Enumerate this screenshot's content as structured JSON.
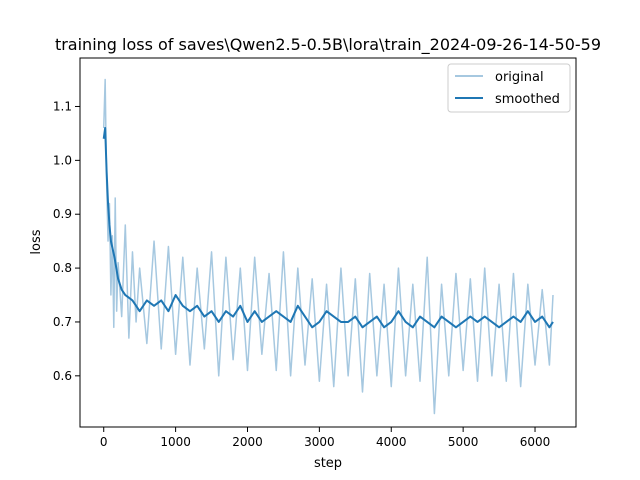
{
  "chart_data": {
    "type": "line",
    "title": "training loss of saves\\Qwen2.5-0.5B\\lora\\train_2024-09-26-14-50-59",
    "xlabel": "step",
    "ylabel": "loss",
    "xlim": [
      -330,
      6570
    ],
    "ylim": [
      0.505,
      1.19
    ],
    "xticks": [
      0,
      1000,
      2000,
      3000,
      4000,
      5000,
      6000
    ],
    "yticks": [
      0.6,
      0.7,
      0.8,
      0.9,
      1.0,
      1.1
    ],
    "grid": false,
    "legend": {
      "placement": "top-right"
    },
    "series": [
      {
        "name": "original",
        "color": "#a6c8e0",
        "x": [
          0,
          20,
          40,
          60,
          80,
          100,
          120,
          140,
          160,
          180,
          200,
          250,
          300,
          350,
          400,
          450,
          500,
          600,
          700,
          800,
          900,
          1000,
          1100,
          1200,
          1300,
          1400,
          1500,
          1600,
          1700,
          1800,
          1900,
          2000,
          2100,
          2200,
          2300,
          2400,
          2500,
          2600,
          2700,
          2800,
          2900,
          3000,
          3100,
          3200,
          3300,
          3400,
          3500,
          3600,
          3700,
          3800,
          3900,
          4000,
          4100,
          4200,
          4300,
          4400,
          4500,
          4600,
          4700,
          4800,
          4900,
          5000,
          5100,
          5200,
          5300,
          5400,
          5500,
          5600,
          5700,
          5800,
          5900,
          6000,
          6100,
          6200,
          6250
        ],
        "y": [
          1.06,
          1.15,
          0.96,
          0.85,
          0.92,
          0.75,
          0.86,
          0.69,
          0.93,
          0.72,
          0.81,
          0.71,
          0.88,
          0.67,
          0.83,
          0.7,
          0.8,
          0.66,
          0.85,
          0.65,
          0.84,
          0.64,
          0.82,
          0.62,
          0.8,
          0.65,
          0.83,
          0.6,
          0.82,
          0.63,
          0.8,
          0.61,
          0.82,
          0.64,
          0.79,
          0.61,
          0.83,
          0.6,
          0.8,
          0.62,
          0.78,
          0.59,
          0.77,
          0.58,
          0.8,
          0.6,
          0.78,
          0.57,
          0.79,
          0.6,
          0.77,
          0.58,
          0.8,
          0.6,
          0.77,
          0.59,
          0.82,
          0.53,
          0.77,
          0.6,
          0.79,
          0.61,
          0.78,
          0.59,
          0.8,
          0.6,
          0.77,
          0.59,
          0.79,
          0.58,
          0.77,
          0.62,
          0.76,
          0.62,
          0.75
        ]
      },
      {
        "name": "smoothed",
        "color": "#1f77b4",
        "x": [
          0,
          20,
          40,
          60,
          80,
          100,
          150,
          200,
          250,
          300,
          400,
          500,
          600,
          700,
          800,
          900,
          1000,
          1100,
          1200,
          1300,
          1400,
          1500,
          1600,
          1700,
          1800,
          1900,
          2000,
          2100,
          2200,
          2300,
          2400,
          2500,
          2600,
          2700,
          2800,
          2900,
          3000,
          3100,
          3200,
          3300,
          3400,
          3500,
          3600,
          3700,
          3800,
          3900,
          4000,
          4100,
          4200,
          4300,
          4400,
          4500,
          4600,
          4700,
          4800,
          4900,
          5000,
          5100,
          5200,
          5300,
          5400,
          5500,
          5600,
          5700,
          5800,
          5900,
          6000,
          6100,
          6200,
          6250
        ],
        "y": [
          1.04,
          1.06,
          0.98,
          0.92,
          0.88,
          0.85,
          0.82,
          0.78,
          0.76,
          0.75,
          0.74,
          0.72,
          0.74,
          0.73,
          0.74,
          0.72,
          0.75,
          0.73,
          0.72,
          0.73,
          0.71,
          0.72,
          0.7,
          0.72,
          0.71,
          0.73,
          0.7,
          0.72,
          0.7,
          0.71,
          0.72,
          0.71,
          0.7,
          0.73,
          0.71,
          0.69,
          0.7,
          0.72,
          0.71,
          0.7,
          0.7,
          0.71,
          0.69,
          0.7,
          0.71,
          0.69,
          0.7,
          0.72,
          0.7,
          0.69,
          0.71,
          0.7,
          0.69,
          0.71,
          0.7,
          0.69,
          0.7,
          0.71,
          0.7,
          0.71,
          0.7,
          0.69,
          0.7,
          0.71,
          0.7,
          0.72,
          0.7,
          0.71,
          0.69,
          0.7
        ]
      }
    ]
  }
}
